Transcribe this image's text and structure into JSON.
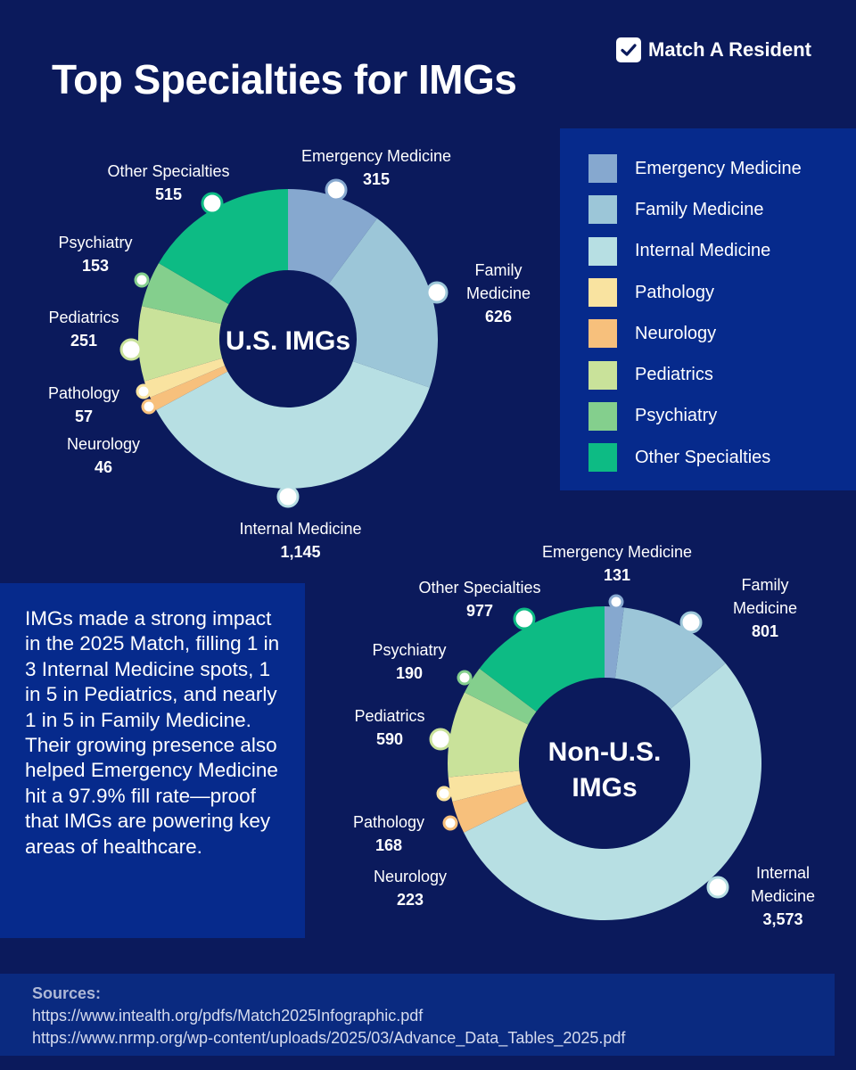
{
  "header": {
    "title": "Top Specialties for IMGs",
    "brand": "Match A Resident"
  },
  "colors": {
    "background": "#0b1a5c",
    "panel": "#062a8c",
    "emergency_medicine": "#86a8cf",
    "family_medicine": "#9cc6d8",
    "internal_medicine": "#b7dfe3",
    "pathology": "#f9e3a0",
    "neurology": "#f7c07c",
    "pediatrics": "#c9e29a",
    "psychiatry": "#84cf8d",
    "other_specialties": "#0dbb84"
  },
  "legend": [
    {
      "label": "Emergency Medicine",
      "color": "#86a8cf"
    },
    {
      "label": "Family Medicine",
      "color": "#9cc6d8"
    },
    {
      "label": "Internal Medicine",
      "color": "#b7dfe3"
    },
    {
      "label": "Pathology",
      "color": "#f9e3a0"
    },
    {
      "label": "Neurology",
      "color": "#f7c07c"
    },
    {
      "label": "Pediatrics",
      "color": "#c9e29a"
    },
    {
      "label": "Psychiatry",
      "color": "#84cf8d"
    },
    {
      "label": "Other Specialties",
      "color": "#0dbb84"
    }
  ],
  "chart_data": [
    {
      "type": "pie",
      "title": "U.S. IMGs",
      "categories": [
        "Emergency Medicine",
        "Family Medicine",
        "Internal Medicine",
        "Neurology",
        "Pathology",
        "Pediatrics",
        "Psychiatry",
        "Other Specialties"
      ],
      "values": [
        315,
        626,
        1145,
        46,
        57,
        251,
        153,
        515
      ],
      "value_labels": [
        "315",
        "626",
        "1,145",
        "46",
        "57",
        "251",
        "153",
        "515"
      ],
      "label_lines": [
        [
          "Emergency Medicine"
        ],
        [
          "Family",
          "Medicine"
        ],
        [
          "Internal Medicine"
        ],
        [
          "Neurology"
        ],
        [
          "Pathology"
        ],
        [
          "Pediatrics"
        ],
        [
          "Psychiatry"
        ],
        [
          "Other Specialties"
        ]
      ],
      "colors": [
        "#86a8cf",
        "#9cc6d8",
        "#b7dfe3",
        "#f7c07c",
        "#f9e3a0",
        "#c9e29a",
        "#84cf8d",
        "#0dbb84"
      ]
    },
    {
      "type": "pie",
      "title": "Non-U.S. IMGs",
      "title_lines": [
        "Non-U.S.",
        "IMGs"
      ],
      "categories": [
        "Emergency Medicine",
        "Family Medicine",
        "Internal Medicine",
        "Neurology",
        "Pathology",
        "Pediatrics",
        "Psychiatry",
        "Other Specialties"
      ],
      "values": [
        131,
        801,
        3573,
        223,
        168,
        590,
        190,
        977
      ],
      "value_labels": [
        "131",
        "801",
        "3,573",
        "223",
        "168",
        "590",
        "190",
        "977"
      ],
      "label_lines": [
        [
          "Emergency Medicine"
        ],
        [
          "Family",
          "Medicine"
        ],
        [
          "Internal",
          "Medicine"
        ],
        [
          "Neurology"
        ],
        [
          "Pathology"
        ],
        [
          "Pediatrics"
        ],
        [
          "Psychiatry"
        ],
        [
          "Other Specialties"
        ]
      ],
      "colors": [
        "#86a8cf",
        "#9cc6d8",
        "#b7dfe3",
        "#f7c07c",
        "#f9e3a0",
        "#c9e29a",
        "#84cf8d",
        "#0dbb84"
      ]
    }
  ],
  "summary": "IMGs made a strong impact in the 2025 Match, filling 1 in 3 Internal Medicine spots, 1 in 5 in Pediatrics, and nearly 1 in 5 in Family Medicine. Their growing presence also helped Emergency Medicine hit a 97.9% fill rate—proof that IMGs are powering key areas of healthcare.",
  "sources": {
    "title": "Sources:",
    "links": [
      "https://www.intealth.org/pdfs/Match2025Infographic.pdf",
      "https://www.nrmp.org/wp-content/uploads/2025/03/Advance_Data_Tables_2025.pdf"
    ]
  }
}
